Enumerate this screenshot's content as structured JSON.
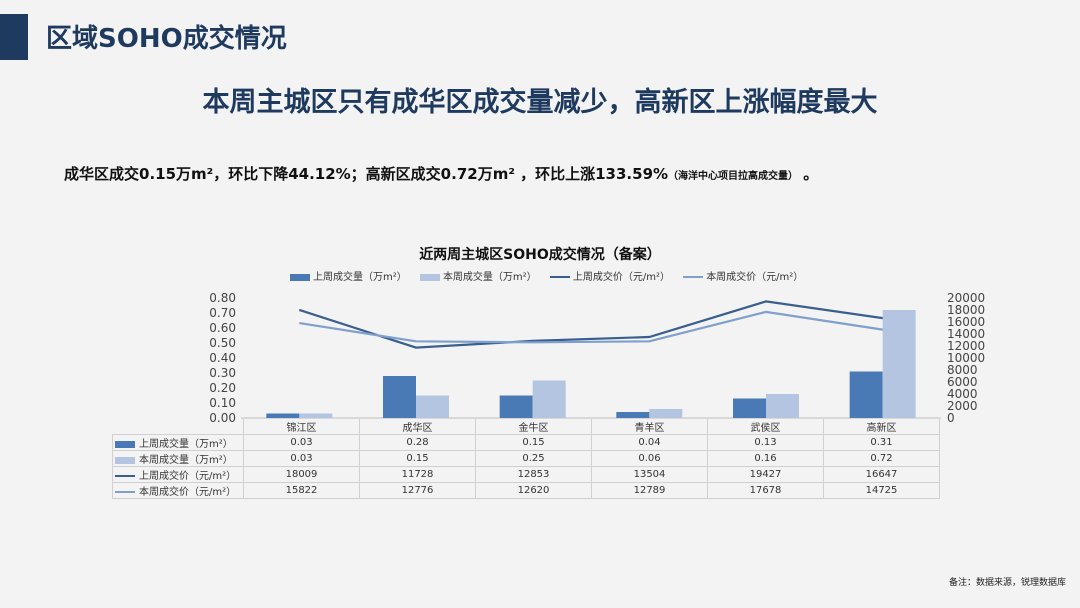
{
  "page": {
    "title": "区域SOHO成交情况",
    "headline": "本周主城区只有成华区成交量减少，高新区上涨幅度最大",
    "summary_main": "成华区成交0.15万m²，环比下降44.12%；高新区成交0.72万m² ，环比上涨133.59%",
    "summary_small": "（海洋中心项目拉高成交量）",
    "summary_end": " 。",
    "note": "备注：数据来源，锐理数据库"
  },
  "chart_data": {
    "type": "bar",
    "title": "近两周主城区SOHO成交情况（备案）",
    "categories": [
      "锦江区",
      "成华区",
      "金牛区",
      "青羊区",
      "武侯区",
      "高新区"
    ],
    "y_left": {
      "min": 0,
      "max": 0.8,
      "ticks": [
        "0.00",
        "0.10",
        "0.20",
        "0.30",
        "0.40",
        "0.50",
        "0.60",
        "0.70",
        "0.80"
      ]
    },
    "y_right": {
      "min": 0,
      "max": 20000,
      "ticks": [
        "0",
        "2000",
        "4000",
        "6000",
        "8000",
        "10000",
        "12000",
        "14000",
        "16000",
        "18000",
        "20000"
      ]
    },
    "series": [
      {
        "name": "上周成交量（万m²）",
        "type": "bar",
        "axis": "left",
        "color": "#4a7ab5",
        "values": [
          0.03,
          0.28,
          0.15,
          0.04,
          0.13,
          0.31
        ],
        "labels": [
          "0.03",
          "0.28",
          "0.15",
          "0.04",
          "0.13",
          "0.31"
        ]
      },
      {
        "name": "本周成交量（万m²）",
        "type": "bar",
        "axis": "left",
        "color": "#b3c5e1",
        "values": [
          0.03,
          0.15,
          0.25,
          0.06,
          0.16,
          0.72
        ],
        "labels": [
          "0.03",
          "0.15",
          "0.25",
          "0.06",
          "0.16",
          "0.72"
        ]
      },
      {
        "name": "上周成交价（元/m²）",
        "type": "line",
        "axis": "right",
        "color": "#3a5f8f",
        "values": [
          18009,
          11728,
          12853,
          13504,
          19427,
          16647
        ],
        "labels": [
          "18009",
          "11728",
          "12853",
          "13504",
          "19427",
          "16647"
        ]
      },
      {
        "name": "本周成交价（元/m²）",
        "type": "line",
        "axis": "right",
        "color": "#7f9fcc",
        "values": [
          15822,
          12776,
          12620,
          12789,
          17678,
          14725
        ],
        "labels": [
          "15822",
          "12776",
          "12620",
          "12789",
          "17678",
          "14725"
        ]
      }
    ],
    "legend": "top",
    "data_table": true
  }
}
